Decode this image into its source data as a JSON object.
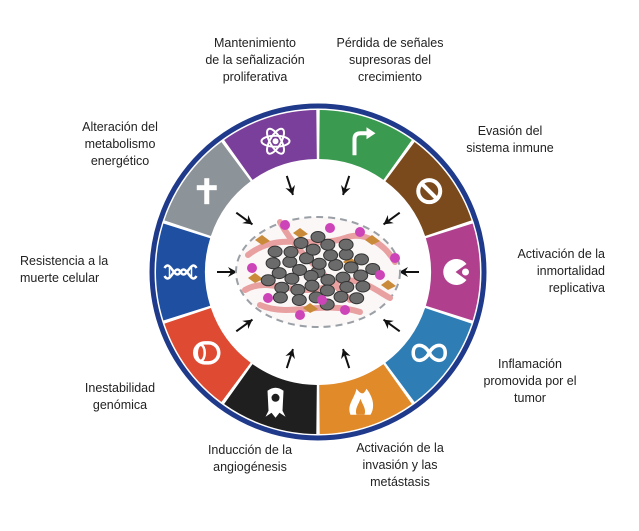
{
  "diagram": {
    "hallmarks": [
      {
        "id": "proliferative",
        "lines": [
          "Mantenimiento",
          "de la señalización",
          "proliferativa"
        ],
        "color": "#3a9a50",
        "icon": "arrow-icon"
      },
      {
        "id": "suppressors",
        "lines": [
          "Pérdida de señales",
          "supresoras del",
          "crecimiento"
        ],
        "color": "#7a4a1c",
        "icon": "no-entry-icon"
      },
      {
        "id": "immune",
        "lines": [
          "Evasión del",
          "sistema inmune"
        ],
        "color": "#b0408e",
        "icon": "pacman-cell-icon"
      },
      {
        "id": "immortality",
        "lines": [
          "Activación de la",
          "inmortalidad",
          "replicativa"
        ],
        "color": "#2f7db5",
        "icon": "infinity-icon"
      },
      {
        "id": "inflammation",
        "lines": [
          "Inflamación",
          "promovida por el",
          "tumor"
        ],
        "color": "#e08a2a",
        "icon": "flame-icon"
      },
      {
        "id": "invasion",
        "lines": [
          "Activación de la",
          "invasión y las",
          "metástasis"
        ],
        "color": "#1f1f1f",
        "icon": "migrating-cell-icon"
      },
      {
        "id": "angiogenesis",
        "lines": [
          "Inducción de la",
          "angiogénesis"
        ],
        "color": "#de4a32",
        "icon": "blood-vessel-icon"
      },
      {
        "id": "genomic",
        "lines": [
          "Inestabilidad",
          "genómica"
        ],
        "color": "#1f4fa0",
        "icon": "dna-icon"
      },
      {
        "id": "death",
        "lines": [
          "Resistencia a la",
          "muerte celular"
        ],
        "color": "#8c9399",
        "icon": "cross-icon"
      },
      {
        "id": "metabolism",
        "lines": [
          "Alteración del",
          "metabolismo",
          "energético"
        ],
        "color": "#7a3f9a",
        "icon": "atom-icon"
      }
    ],
    "ring_color": "#1f3a8a",
    "tumor_colors": {
      "cell": "#6b6b6b",
      "magenta": "#cc44b8",
      "vessel": "#e8a0a0",
      "stroma": "#c98a3a",
      "outline": "#9aa0a6"
    }
  }
}
